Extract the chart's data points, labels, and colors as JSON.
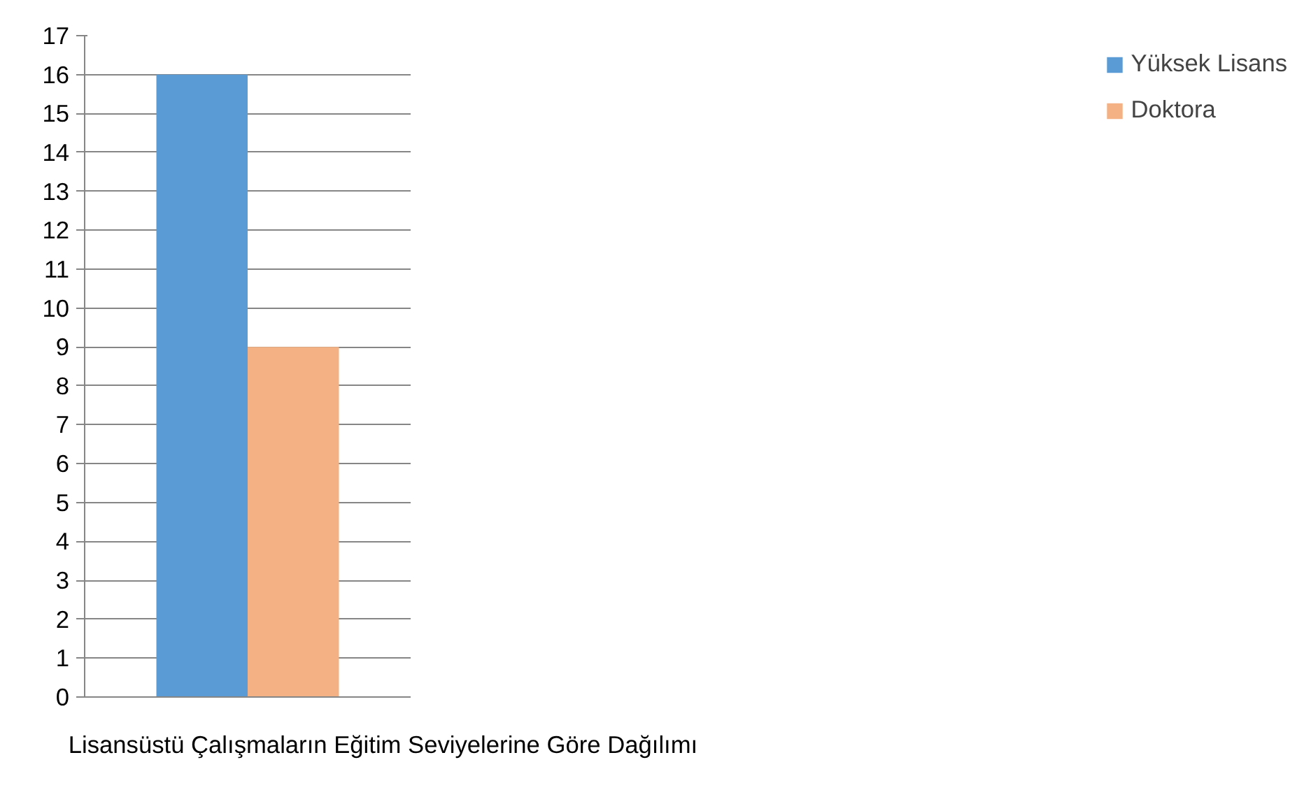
{
  "chart_data": {
    "type": "bar",
    "categories": [
      "Lisansüstü Çalışmaların Eğitim Seviyelerine Göre Dağılımı"
    ],
    "series": [
      {
        "name": "Yüksek Lisans",
        "color": "#5b9bd5",
        "values": [
          16
        ]
      },
      {
        "name": "Doktora",
        "color": "#f4b183",
        "values": [
          9
        ]
      }
    ],
    "ylim": [
      0,
      17
    ],
    "yticks": [
      0,
      1,
      2,
      3,
      4,
      5,
      6,
      7,
      8,
      9,
      10,
      11,
      12,
      13,
      14,
      15,
      16,
      17
    ],
    "grid": "y",
    "legend": "right"
  }
}
